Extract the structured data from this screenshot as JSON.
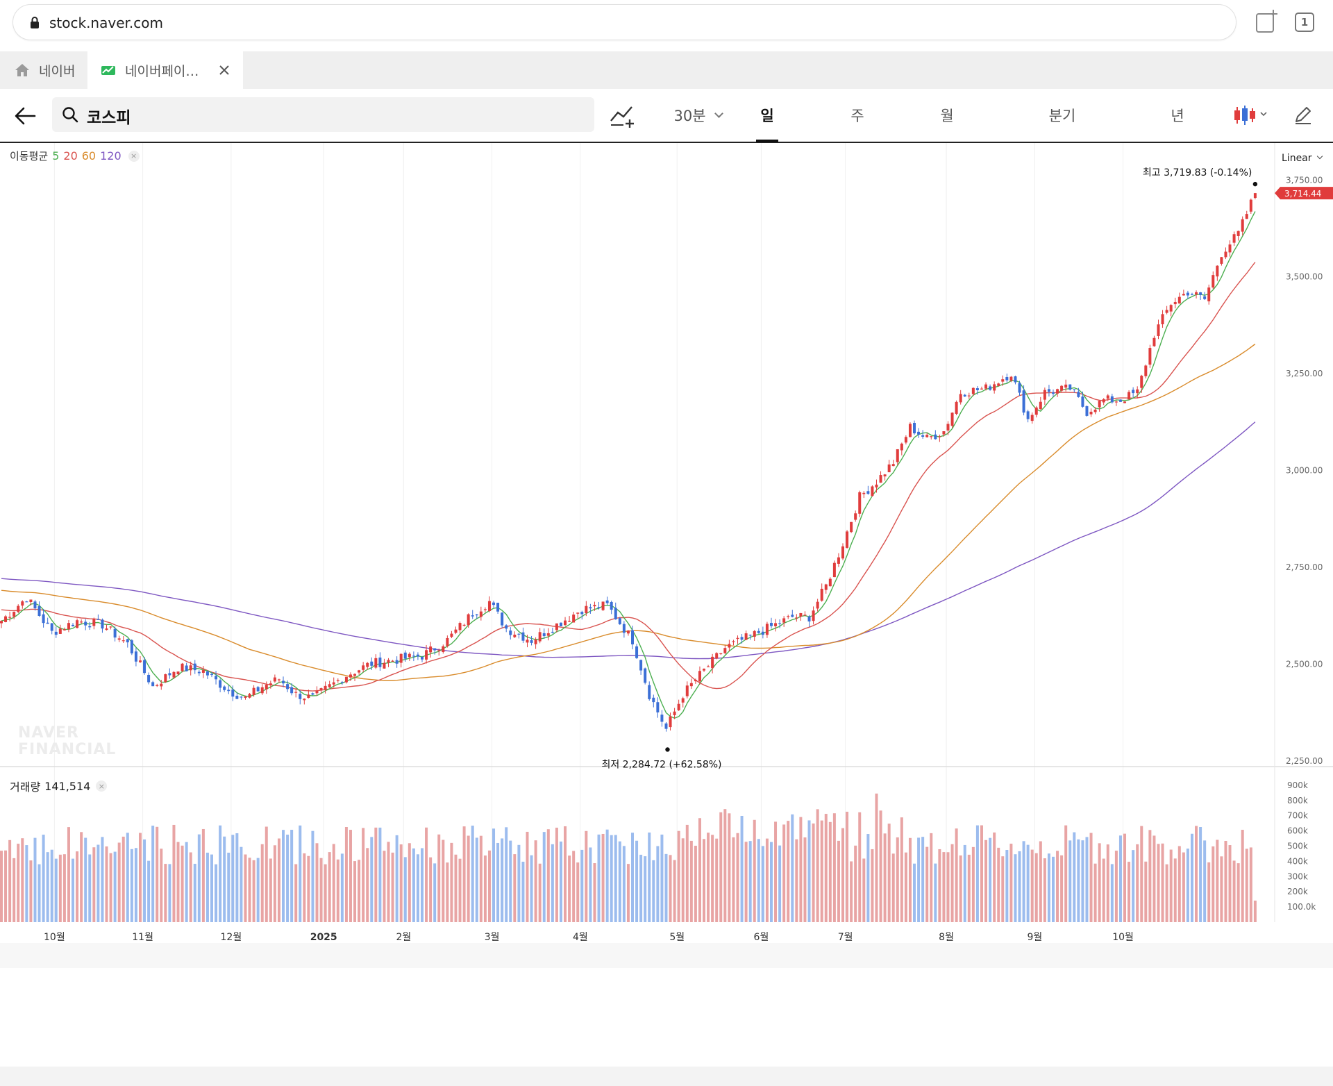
{
  "browser": {
    "url": "stock.naver.com",
    "tab_count": "1",
    "tabs": [
      {
        "label": "네이버",
        "icon": "home-icon"
      },
      {
        "label": "네이버페이…",
        "icon": "stock-chart-icon"
      }
    ]
  },
  "toolbar": {
    "search_text": "코스피",
    "periods": [
      {
        "label": "30분",
        "dropdown": true
      },
      {
        "label": "일",
        "active": true
      },
      {
        "label": "주"
      },
      {
        "label": "월"
      },
      {
        "label": "분기"
      },
      {
        "label": "년"
      }
    ]
  },
  "chart": {
    "ma_legend_title": "이동평균",
    "ma_periods": [
      {
        "label": "5",
        "color": "#4caf50"
      },
      {
        "label": "20",
        "color": "#d9534f"
      },
      {
        "label": "60",
        "color": "#d98b2b"
      },
      {
        "label": "120",
        "color": "#7e57c2"
      }
    ],
    "scale_mode": "Linear",
    "high_label": "최고",
    "high_value": "3,719.83 (-0.14%)",
    "low_label": "최저",
    "low_value": "2,284.72 (+62.58%)",
    "current_price": "3,714.44",
    "volume_title": "거래량",
    "volume_value": "141,514",
    "watermark_line1": "NAVER",
    "watermark_line2": "FINANCIAL",
    "colors": {
      "up": "#e03c3c",
      "down": "#3b6fd6",
      "vol_up": "#e8a4a4",
      "vol_down": "#9cbcee"
    }
  },
  "chart_data": {
    "type": "candlestick",
    "title": "",
    "y_ticks": [
      "2,250.00",
      "2,500.00",
      "2,750.00",
      "3,000.00",
      "3,250.00",
      "3,500.00",
      "3,750.00"
    ],
    "ylim": [
      2230,
      3790
    ],
    "volume_ticks": [
      "100.0k",
      "200k",
      "300k",
      "400k",
      "500k",
      "600k",
      "700k",
      "800k",
      "900k"
    ],
    "x_ticks": [
      "10월",
      "11월",
      "12월",
      "2025",
      "2월",
      "3월",
      "4월",
      "5월",
      "6월",
      "7월",
      "8월",
      "9월",
      "10월"
    ],
    "price_anchors": [
      [
        0,
        2610
      ],
      [
        6,
        2670
      ],
      [
        12,
        2580
      ],
      [
        18,
        2610
      ],
      [
        24,
        2600
      ],
      [
        30,
        2550
      ],
      [
        36,
        2440
      ],
      [
        42,
        2490
      ],
      [
        48,
        2480
      ],
      [
        54,
        2430
      ],
      [
        58,
        2410
      ],
      [
        62,
        2440
      ],
      [
        66,
        2460
      ],
      [
        70,
        2420
      ],
      [
        74,
        2410
      ],
      [
        78,
        2440
      ],
      [
        82,
        2470
      ],
      [
        88,
        2500
      ],
      [
        94,
        2510
      ],
      [
        100,
        2520
      ],
      [
        106,
        2560
      ],
      [
        112,
        2630
      ],
      [
        116,
        2660
      ],
      [
        120,
        2590
      ],
      [
        126,
        2560
      ],
      [
        132,
        2600
      ],
      [
        138,
        2640
      ],
      [
        144,
        2650
      ],
      [
        150,
        2560
      ],
      [
        154,
        2420
      ],
      [
        158,
        2330
      ],
      [
        162,
        2420
      ],
      [
        166,
        2470
      ],
      [
        172,
        2540
      ],
      [
        178,
        2570
      ],
      [
        184,
        2600
      ],
      [
        188,
        2620
      ],
      [
        192,
        2620
      ],
      [
        196,
        2700
      ],
      [
        200,
        2810
      ],
      [
        204,
        2930
      ],
      [
        208,
        2970
      ],
      [
        212,
        3020
      ],
      [
        216,
        3110
      ],
      [
        220,
        3080
      ],
      [
        224,
        3100
      ],
      [
        228,
        3200
      ],
      [
        234,
        3210
      ],
      [
        240,
        3250
      ],
      [
        244,
        3130
      ],
      [
        248,
        3200
      ],
      [
        254,
        3210
      ],
      [
        258,
        3150
      ],
      [
        262,
        3180
      ],
      [
        266,
        3180
      ],
      [
        270,
        3200
      ],
      [
        274,
        3350
      ],
      [
        278,
        3430
      ],
      [
        282,
        3460
      ],
      [
        286,
        3440
      ],
      [
        290,
        3560
      ],
      [
        294,
        3610
      ],
      [
        298,
        3714
      ]
    ]
  }
}
